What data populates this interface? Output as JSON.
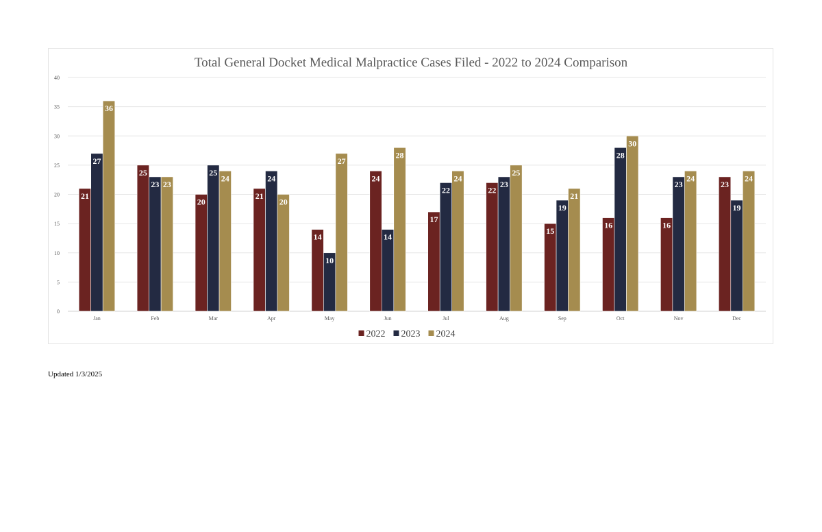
{
  "chart_data": {
    "type": "bar",
    "title": "Total General Docket Medical Malpractice Cases Filed - 2022 to 2024 Comparison",
    "xlabel": "",
    "ylabel": "",
    "categories": [
      "Jan",
      "Feb",
      "Mar",
      "Apr",
      "May",
      "Jun",
      "Jul",
      "Aug",
      "Sep",
      "Oct",
      "Nov",
      "Dec"
    ],
    "series": [
      {
        "name": "2022",
        "color": "#6B2321",
        "values": [
          21,
          25,
          20,
          21,
          14,
          24,
          17,
          22,
          15,
          16,
          16,
          23
        ]
      },
      {
        "name": "2023",
        "color": "#232A42",
        "values": [
          27,
          23,
          25,
          24,
          10,
          14,
          22,
          23,
          19,
          28,
          23,
          19
        ]
      },
      {
        "name": "2024",
        "color": "#A58C4F",
        "values": [
          36,
          23,
          24,
          20,
          27,
          28,
          24,
          25,
          21,
          30,
          24,
          24
        ]
      }
    ],
    "ylim": [
      0,
      40
    ],
    "yticks": [
      0,
      5,
      10,
      15,
      20,
      25,
      30,
      35,
      40
    ],
    "grid": true,
    "legend_position": "bottom",
    "data_labels": true
  },
  "footer": {
    "note": "Updated 1/3/2025"
  }
}
